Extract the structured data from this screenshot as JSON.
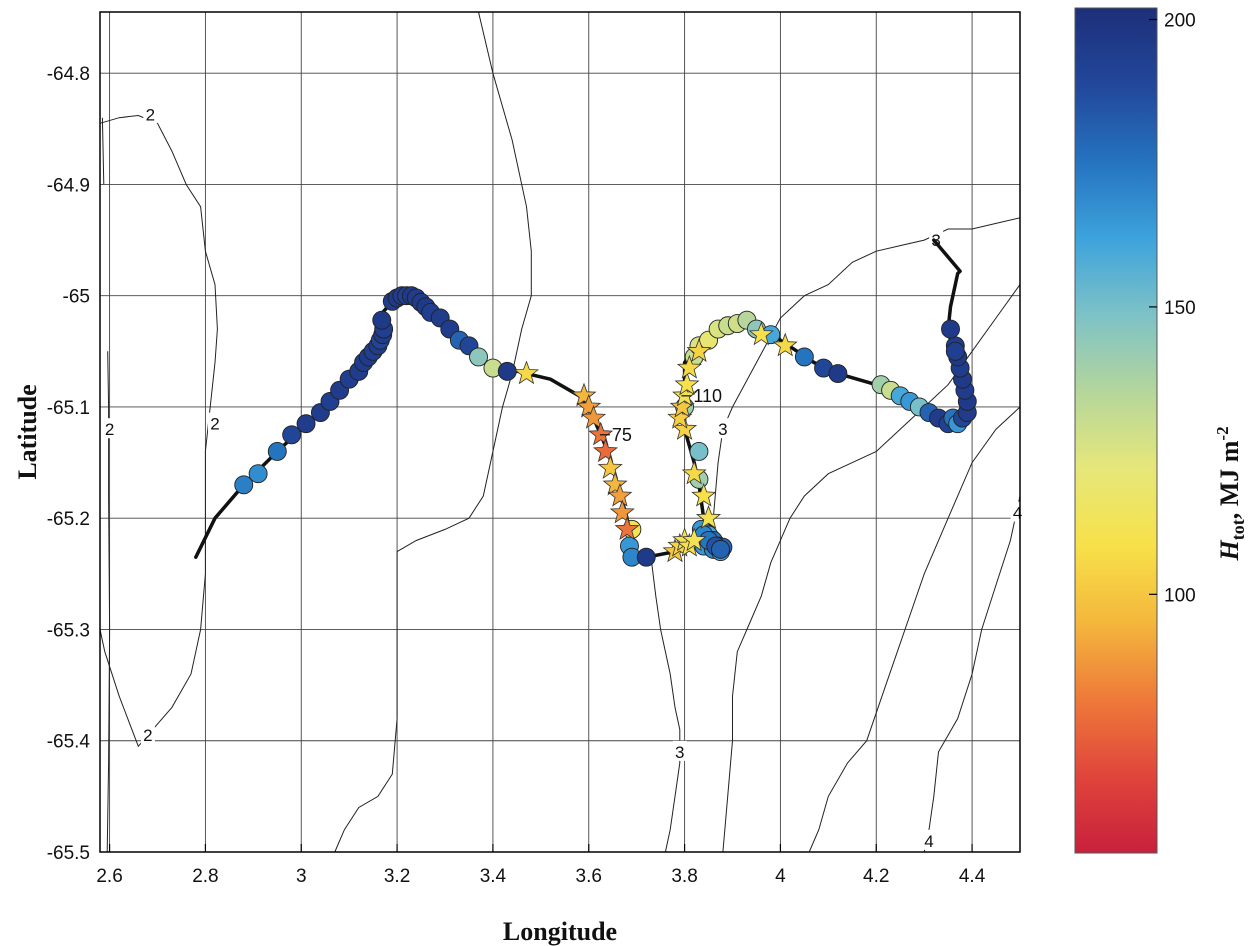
{
  "chart_data": {
    "type": "scatter",
    "title": "",
    "xlabel": "Longitude",
    "ylabel": "Latitude",
    "xlim": [
      2.58,
      4.5
    ],
    "ylim": [
      -65.5,
      -64.745
    ],
    "xticks": [
      "2.6",
      "2.8",
      "3",
      "3.2",
      "3.4",
      "3.6",
      "3.8",
      "4",
      "4.2",
      "4.4"
    ],
    "xtick_values": [
      2.6,
      2.8,
      3.0,
      3.2,
      3.4,
      3.6,
      3.8,
      4.0,
      4.2,
      4.4
    ],
    "yticks": [
      "-64.8",
      "-64.9",
      "-65",
      "-65.1",
      "-65.2",
      "-65.3",
      "-65.4",
      "-65.5"
    ],
    "ytick_values": [
      -64.8,
      -64.9,
      -65.0,
      -65.1,
      -65.2,
      -65.3,
      -65.4,
      -65.5
    ],
    "grid": true,
    "colorbar": {
      "label_main": "H",
      "label_sub": "tot",
      "label_unit": ", MJ m",
      "label_sup": "-2",
      "range": [
        55,
        202
      ],
      "ticks": [
        "100",
        "150",
        "200"
      ],
      "tick_values": [
        100,
        150,
        200
      ],
      "colors": [
        "#c8203c",
        "#e0453b",
        "#ee7a3a",
        "#f4b73c",
        "#f7e14a",
        "#e6e77a",
        "#b5d69b",
        "#7ec2c7",
        "#3da3dc",
        "#2573bf",
        "#22479a",
        "#1d2f7a"
      ]
    },
    "track": [
      [
        2.78,
        -65.235
      ],
      [
        2.82,
        -65.2
      ],
      [
        2.88,
        -65.17
      ],
      [
        2.95,
        -65.14
      ],
      [
        3.0,
        -65.12
      ],
      [
        3.05,
        -65.1
      ],
      [
        3.1,
        -65.075
      ],
      [
        3.15,
        -65.05
      ],
      [
        3.17,
        -65.04
      ],
      [
        3.16,
        -65.02
      ],
      [
        3.19,
        -65.005
      ],
      [
        3.22,
        -65.0
      ],
      [
        3.27,
        -65.005
      ],
      [
        3.3,
        -65.02
      ],
      [
        3.33,
        -65.04
      ],
      [
        3.38,
        -65.06
      ],
      [
        3.47,
        -65.07
      ],
      [
        3.52,
        -65.075
      ],
      [
        3.58,
        -65.09
      ],
      [
        3.6,
        -65.1
      ],
      [
        3.62,
        -65.12
      ],
      [
        3.64,
        -65.14
      ],
      [
        3.66,
        -65.17
      ],
      [
        3.68,
        -65.2
      ],
      [
        3.69,
        -65.23
      ],
      [
        3.72,
        -65.235
      ],
      [
        3.78,
        -65.23
      ],
      [
        3.82,
        -65.226
      ],
      [
        3.86,
        -65.22
      ],
      [
        3.89,
        -65.225
      ],
      [
        3.84,
        -65.2
      ],
      [
        3.83,
        -65.17
      ],
      [
        3.82,
        -65.15
      ],
      [
        3.8,
        -65.12
      ],
      [
        3.8,
        -65.08
      ],
      [
        3.8,
        -65.06
      ],
      [
        3.82,
        -65.05
      ],
      [
        3.85,
        -65.04
      ],
      [
        3.88,
        -65.03
      ],
      [
        3.93,
        -65.025
      ],
      [
        3.97,
        -65.03
      ],
      [
        4.0,
        -65.04
      ],
      [
        4.07,
        -65.06
      ],
      [
        4.12,
        -65.07
      ],
      [
        4.2,
        -65.08
      ],
      [
        4.27,
        -65.1
      ],
      [
        4.33,
        -65.11
      ],
      [
        4.37,
        -65.11
      ],
      [
        4.39,
        -65.1
      ],
      [
        4.38,
        -65.08
      ],
      [
        4.36,
        -65.05
      ],
      [
        4.35,
        -65.03
      ],
      [
        4.355,
        -65.01
      ],
      [
        4.365,
        -64.99
      ],
      [
        4.37,
        -64.98
      ],
      [
        4.375,
        -64.978
      ],
      [
        4.32,
        -64.95
      ]
    ],
    "circles": [
      [
        2.88,
        -65.17,
        172
      ],
      [
        2.91,
        -65.16,
        168
      ],
      [
        2.95,
        -65.14,
        175
      ],
      [
        2.98,
        -65.125,
        190
      ],
      [
        3.01,
        -65.115,
        195
      ],
      [
        3.04,
        -65.105,
        195
      ],
      [
        3.06,
        -65.095,
        193
      ],
      [
        3.08,
        -65.085,
        195
      ],
      [
        3.1,
        -65.075,
        193
      ],
      [
        3.12,
        -65.068,
        195
      ],
      [
        3.13,
        -65.06,
        194
      ],
      [
        3.14,
        -65.055,
        196
      ],
      [
        3.15,
        -65.05,
        193
      ],
      [
        3.16,
        -65.045,
        195
      ],
      [
        3.165,
        -65.04,
        190
      ],
      [
        3.17,
        -65.035,
        195
      ],
      [
        3.172,
        -65.03,
        193
      ],
      [
        3.168,
        -65.022,
        196
      ],
      [
        3.19,
        -65.005,
        194
      ],
      [
        3.2,
        -65.002,
        196
      ],
      [
        3.21,
        -65.0,
        195
      ],
      [
        3.22,
        -65.0,
        193
      ],
      [
        3.23,
        -65.0,
        196
      ],
      [
        3.24,
        -65.002,
        195
      ],
      [
        3.25,
        -65.006,
        194
      ],
      [
        3.26,
        -65.01,
        196
      ],
      [
        3.27,
        -65.015,
        193
      ],
      [
        3.29,
        -65.02,
        195
      ],
      [
        3.31,
        -65.03,
        194
      ],
      [
        3.33,
        -65.04,
        180
      ],
      [
        3.35,
        -65.045,
        190
      ],
      [
        3.37,
        -65.055,
        145
      ],
      [
        3.4,
        -65.065,
        130
      ],
      [
        3.43,
        -65.068,
        196
      ],
      [
        3.69,
        -65.21,
        110
      ],
      [
        3.685,
        -65.225,
        165
      ],
      [
        3.69,
        -65.235,
        170
      ],
      [
        3.72,
        -65.235,
        196
      ],
      [
        3.835,
        -65.21,
        165
      ],
      [
        3.85,
        -65.215,
        160
      ],
      [
        3.86,
        -65.22,
        175
      ],
      [
        3.87,
        -65.225,
        190
      ],
      [
        3.88,
        -65.226,
        180
      ],
      [
        3.83,
        -65.165,
        140
      ],
      [
        3.83,
        -65.14,
        150
      ],
      [
        3.84,
        -65.225,
        165
      ],
      [
        3.86,
        -65.228,
        170
      ],
      [
        3.875,
        -65.23,
        160
      ],
      [
        3.84,
        -65.215,
        170
      ],
      [
        3.85,
        -65.22,
        175
      ],
      [
        3.865,
        -65.225,
        185
      ],
      [
        3.875,
        -65.228,
        180
      ],
      [
        3.8,
        -65.1,
        140
      ],
      [
        3.82,
        -65.055,
        130
      ],
      [
        3.83,
        -65.045,
        125
      ],
      [
        3.85,
        -65.04,
        120
      ],
      [
        3.87,
        -65.03,
        125
      ],
      [
        3.89,
        -65.027,
        130
      ],
      [
        3.91,
        -65.025,
        128
      ],
      [
        3.93,
        -65.022,
        135
      ],
      [
        3.95,
        -65.03,
        145
      ],
      [
        3.98,
        -65.035,
        160
      ],
      [
        4.05,
        -65.055,
        175
      ],
      [
        4.09,
        -65.065,
        190
      ],
      [
        4.12,
        -65.07,
        196
      ],
      [
        4.21,
        -65.08,
        140
      ],
      [
        4.23,
        -65.085,
        130
      ],
      [
        4.25,
        -65.09,
        160
      ],
      [
        4.27,
        -65.095,
        165
      ],
      [
        4.29,
        -65.1,
        150
      ],
      [
        4.31,
        -65.105,
        180
      ],
      [
        4.33,
        -65.11,
        195
      ],
      [
        4.35,
        -65.115,
        192
      ],
      [
        4.36,
        -65.11,
        175
      ],
      [
        4.37,
        -65.115,
        165
      ],
      [
        4.38,
        -65.11,
        190
      ],
      [
        4.39,
        -65.105,
        195
      ],
      [
        4.39,
        -65.095,
        196
      ],
      [
        4.385,
        -65.085,
        195
      ],
      [
        4.38,
        -65.075,
        196
      ],
      [
        4.375,
        -65.065,
        194
      ],
      [
        4.37,
        -65.055,
        196
      ],
      [
        4.365,
        -65.045,
        195
      ],
      [
        4.355,
        -65.03,
        196
      ],
      [
        4.365,
        -65.05,
        193
      ]
    ],
    "stars": [
      [
        3.47,
        -65.07,
        106
      ],
      [
        3.59,
        -65.09,
        95
      ],
      [
        3.6,
        -65.1,
        90
      ],
      [
        3.61,
        -65.11,
        88
      ],
      [
        3.625,
        -65.125,
        80
      ],
      [
        3.635,
        -65.14,
        78
      ],
      [
        3.645,
        -65.155,
        100
      ],
      [
        3.655,
        -65.17,
        95
      ],
      [
        3.665,
        -65.18,
        90
      ],
      [
        3.67,
        -65.195,
        88
      ],
      [
        3.68,
        -65.21,
        80
      ],
      [
        3.78,
        -65.23,
        100
      ],
      [
        3.79,
        -65.225,
        105
      ],
      [
        3.8,
        -65.22,
        110
      ],
      [
        3.81,
        -65.225,
        108
      ],
      [
        3.82,
        -65.22,
        112
      ],
      [
        3.85,
        -65.2,
        110
      ],
      [
        3.84,
        -65.18,
        108
      ],
      [
        3.82,
        -65.16,
        106
      ],
      [
        3.8,
        -65.12,
        104
      ],
      [
        3.79,
        -65.11,
        102
      ],
      [
        3.795,
        -65.1,
        100
      ],
      [
        3.8,
        -65.09,
        110
      ],
      [
        3.805,
        -65.08,
        108
      ],
      [
        3.81,
        -65.065,
        106
      ],
      [
        3.83,
        -65.05,
        104
      ],
      [
        3.96,
        -65.035,
        108
      ],
      [
        4.01,
        -65.045,
        106
      ]
    ],
    "contours": [
      {
        "label": "2",
        "points": [
          [
            2.58,
            -64.845
          ],
          [
            2.62,
            -64.84
          ],
          [
            2.66,
            -64.838
          ],
          [
            2.7,
            -64.845
          ],
          [
            2.73,
            -64.87
          ],
          [
            2.76,
            -64.9
          ],
          [
            2.79,
            -64.92
          ],
          [
            2.8,
            -64.96
          ],
          [
            2.82,
            -64.99
          ],
          [
            2.825,
            -65.03
          ],
          [
            2.82,
            -65.06
          ],
          [
            2.81,
            -65.1
          ],
          [
            2.8,
            -65.14
          ],
          [
            2.8,
            -65.2
          ],
          [
            2.8,
            -65.25
          ],
          [
            2.79,
            -65.3
          ],
          [
            2.77,
            -65.34
          ],
          [
            2.73,
            -65.37
          ],
          [
            2.69,
            -65.39
          ],
          [
            2.66,
            -65.405
          ],
          [
            2.62,
            -65.36
          ],
          [
            2.59,
            -65.32
          ],
          [
            2.58,
            -65.3
          ]
        ]
      },
      {
        "label": "",
        "points": [
          [
            2.585,
            -64.84
          ],
          [
            2.588,
            -64.9
          ]
        ]
      },
      {
        "label": "2",
        "points": [
          [
            2.596,
            -65.05
          ],
          [
            2.598,
            -65.1
          ],
          [
            2.598,
            -65.18
          ],
          [
            2.6,
            -65.3
          ],
          [
            2.598,
            -65.42
          ],
          [
            2.595,
            -65.5
          ]
        ]
      },
      {
        "label": "",
        "points": [
          [
            3.37,
            -64.745
          ],
          [
            3.4,
            -64.8
          ],
          [
            3.44,
            -64.86
          ],
          [
            3.47,
            -64.92
          ],
          [
            3.48,
            -64.96
          ],
          [
            3.48,
            -65.0
          ],
          [
            3.46,
            -65.03
          ],
          [
            3.44,
            -65.07
          ],
          [
            3.42,
            -65.1
          ],
          [
            3.4,
            -65.14
          ],
          [
            3.38,
            -65.18
          ],
          [
            3.35,
            -65.2
          ],
          [
            3.3,
            -65.21
          ],
          [
            3.24,
            -65.22
          ],
          [
            3.2,
            -65.23
          ],
          [
            3.2,
            -65.28
          ],
          [
            3.2,
            -65.33
          ],
          [
            3.2,
            -65.38
          ],
          [
            3.19,
            -65.43
          ],
          [
            3.16,
            -65.45
          ],
          [
            3.12,
            -65.46
          ],
          [
            3.09,
            -65.48
          ],
          [
            3.07,
            -65.5
          ]
        ]
      },
      {
        "label": "3",
        "points": [
          [
            3.73,
            -65.235
          ],
          [
            3.74,
            -65.27
          ],
          [
            3.75,
            -65.3
          ],
          [
            3.77,
            -65.34
          ],
          [
            3.78,
            -65.37
          ],
          [
            3.79,
            -65.39
          ],
          [
            3.79,
            -65.42
          ],
          [
            3.78,
            -65.45
          ],
          [
            3.77,
            -65.48
          ],
          [
            3.76,
            -65.5
          ]
        ]
      },
      {
        "label": "3",
        "points": [
          [
            3.86,
            -65.235
          ],
          [
            3.86,
            -65.2
          ],
          [
            3.87,
            -65.15
          ],
          [
            3.88,
            -65.12
          ],
          [
            3.9,
            -65.1
          ],
          [
            3.95,
            -65.06
          ],
          [
            4.0,
            -65.02
          ],
          [
            4.05,
            -65.0
          ],
          [
            4.1,
            -64.99
          ],
          [
            4.15,
            -64.97
          ],
          [
            4.2,
            -64.96
          ],
          [
            4.25,
            -64.955
          ],
          [
            4.3,
            -64.95
          ],
          [
            4.35,
            -64.94
          ],
          [
            4.4,
            -64.94
          ],
          [
            4.45,
            -64.935
          ],
          [
            4.5,
            -64.93
          ]
        ]
      },
      {
        "label": "",
        "points": [
          [
            4.5,
            -64.99
          ],
          [
            4.45,
            -65.02
          ],
          [
            4.4,
            -65.05
          ],
          [
            4.35,
            -65.08
          ],
          [
            4.3,
            -65.1
          ],
          [
            4.25,
            -65.12
          ],
          [
            4.2,
            -65.14
          ],
          [
            4.15,
            -65.15
          ],
          [
            4.1,
            -65.16
          ],
          [
            4.05,
            -65.18
          ],
          [
            4.02,
            -65.2
          ],
          [
            3.98,
            -65.24
          ],
          [
            3.96,
            -65.27
          ],
          [
            3.93,
            -65.3
          ],
          [
            3.91,
            -65.32
          ],
          [
            3.9,
            -65.36
          ],
          [
            3.9,
            -65.4
          ],
          [
            3.89,
            -65.45
          ],
          [
            3.88,
            -65.5
          ]
        ]
      },
      {
        "label": "",
        "points": [
          [
            4.5,
            -65.1
          ],
          [
            4.45,
            -65.12
          ],
          [
            4.4,
            -65.15
          ],
          [
            4.35,
            -65.2
          ],
          [
            4.3,
            -65.25
          ],
          [
            4.26,
            -65.3
          ],
          [
            4.22,
            -65.35
          ],
          [
            4.18,
            -65.4
          ],
          [
            4.14,
            -65.42
          ],
          [
            4.1,
            -65.45
          ],
          [
            4.08,
            -65.48
          ],
          [
            4.06,
            -65.5
          ]
        ]
      },
      {
        "label": "4",
        "points": [
          [
            4.5,
            -65.18
          ],
          [
            4.48,
            -65.22
          ],
          [
            4.45,
            -65.26
          ],
          [
            4.42,
            -65.3
          ],
          [
            4.4,
            -65.34
          ],
          [
            4.37,
            -65.38
          ],
          [
            4.33,
            -65.41
          ],
          [
            4.32,
            -65.45
          ],
          [
            4.31,
            -65.48
          ],
          [
            4.3,
            -65.5
          ]
        ]
      }
    ],
    "contour_label_positions": [
      [
        2.685,
        -64.837,
        "2"
      ],
      [
        2.82,
        -65.115,
        "2"
      ],
      [
        2.6,
        -65.12,
        "2"
      ],
      [
        2.68,
        -65.395,
        "2"
      ],
      [
        4.325,
        -64.95,
        "3"
      ],
      [
        3.88,
        -65.12,
        "3"
      ],
      [
        3.79,
        -65.41,
        "3"
      ],
      [
        4.495,
        -65.195,
        "4"
      ],
      [
        4.31,
        -65.49,
        "4"
      ]
    ],
    "annotations": [
      {
        "text": "75",
        "x": 3.64,
        "y": -65.125
      },
      {
        "text": "110",
        "x": 3.81,
        "y": -65.09
      }
    ]
  }
}
